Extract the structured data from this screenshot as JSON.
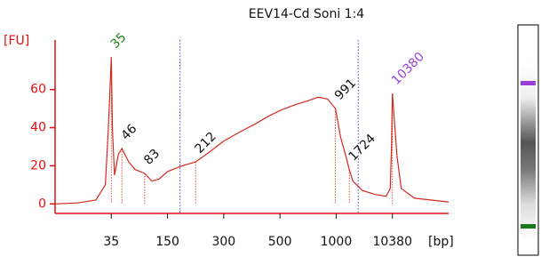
{
  "chart_data": {
    "type": "line",
    "title": "EEV14-Cd Soni 1:4",
    "x_label": "[bp]",
    "y_label": "[FU]",
    "series": [
      {
        "name": "EEV14-Cd Soni 1:4",
        "color": "#d42a1e",
        "x": [
          20,
          25,
          30,
          33,
          34,
          35,
          36,
          38,
          42,
          46,
          55,
          65,
          83,
          100,
          120,
          150,
          180,
          212,
          250,
          300,
          350,
          400,
          450,
          500,
          600,
          700,
          800,
          900,
          991,
          1200,
          1500,
          1724,
          2000,
          3000,
          5000,
          8000,
          9500,
          10000,
          10380,
          10700,
          11000,
          12000,
          15000
        ],
        "values": [
          0,
          0.5,
          2,
          10,
          40,
          77,
          40,
          15,
          26,
          29,
          22,
          18,
          16,
          12,
          13,
          17,
          20,
          22,
          27,
          33,
          38,
          42,
          46,
          49,
          52,
          54,
          56,
          55,
          50,
          35,
          25,
          18,
          12,
          7,
          5,
          4,
          8,
          30,
          58,
          25,
          8,
          3,
          1
        ]
      }
    ],
    "peaks": {
      "x": [
        35,
        46,
        83,
        212,
        991,
        1724,
        10380
      ],
      "y": [
        77,
        29,
        16,
        22,
        50,
        18,
        58
      ],
      "colors": [
        "#1a8a1a",
        "#111111",
        "#111111",
        "#111111",
        "#111111",
        "#111111",
        "#9b3fd8"
      ]
    },
    "region": [
      175,
      2500
    ],
    "xlim": [
      20,
      15000
    ],
    "xticks": [
      35,
      150,
      300,
      500,
      1000,
      10380
    ],
    "ylim": [
      -5,
      86
    ],
    "yticks": [
      0,
      20,
      40,
      60
    ]
  }
}
